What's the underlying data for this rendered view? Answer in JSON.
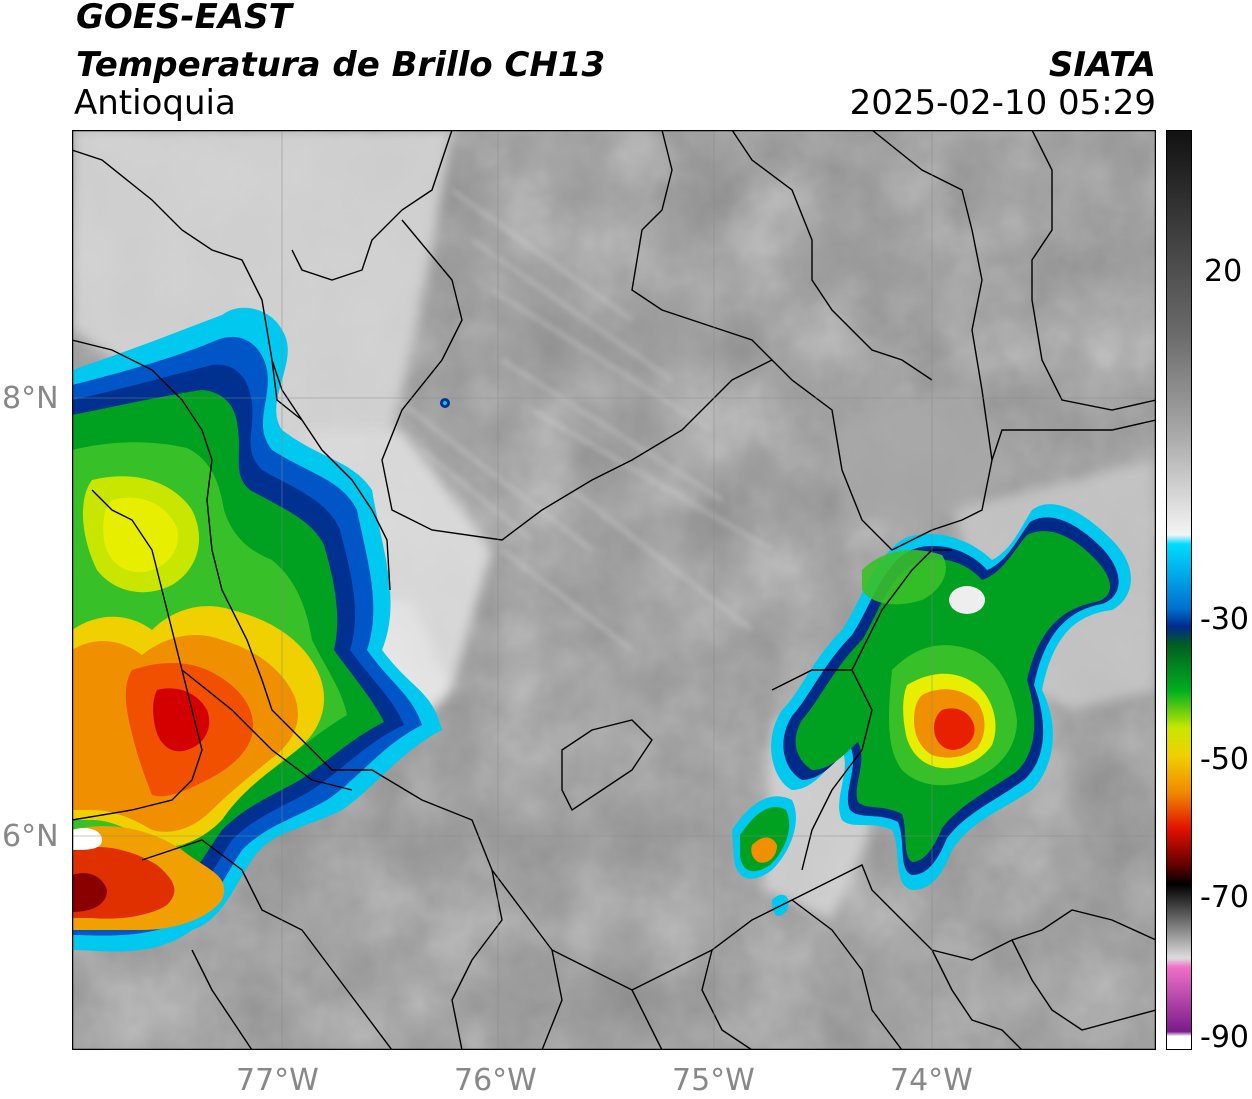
{
  "header": {
    "line1": "GOES-EAST",
    "line2": "Temperatura de Brillo CH13",
    "line3": "Antioquia",
    "org": "SIATA",
    "datetime": "2025-02-10 05:29"
  },
  "map": {
    "lat_labels": [
      "8°N",
      "6°N"
    ],
    "lon_labels": [
      "77°W",
      "76°W",
      "75°W",
      "74°W"
    ],
    "extent": {
      "lon": [
        -77.95,
        -72.95
      ],
      "lat": [
        5.05,
        9.25
      ]
    },
    "grid": true
  },
  "colorbar": {
    "ticks": [
      "20",
      "-30",
      "-50",
      "-70",
      "-90"
    ],
    "range": [
      -90,
      30
    ],
    "colors": {
      "warm": "#111111",
      "gray": "#888888",
      "white": "#f4f4f4",
      "cyan": "#00ccee",
      "navy": "#002a8a",
      "green": "#00b020",
      "yellow": "#e8ea00",
      "orange": "#f08a00",
      "red": "#d80000",
      "black": "#000000",
      "pink": "#e060c0",
      "purple": "#7a1a8a"
    }
  }
}
